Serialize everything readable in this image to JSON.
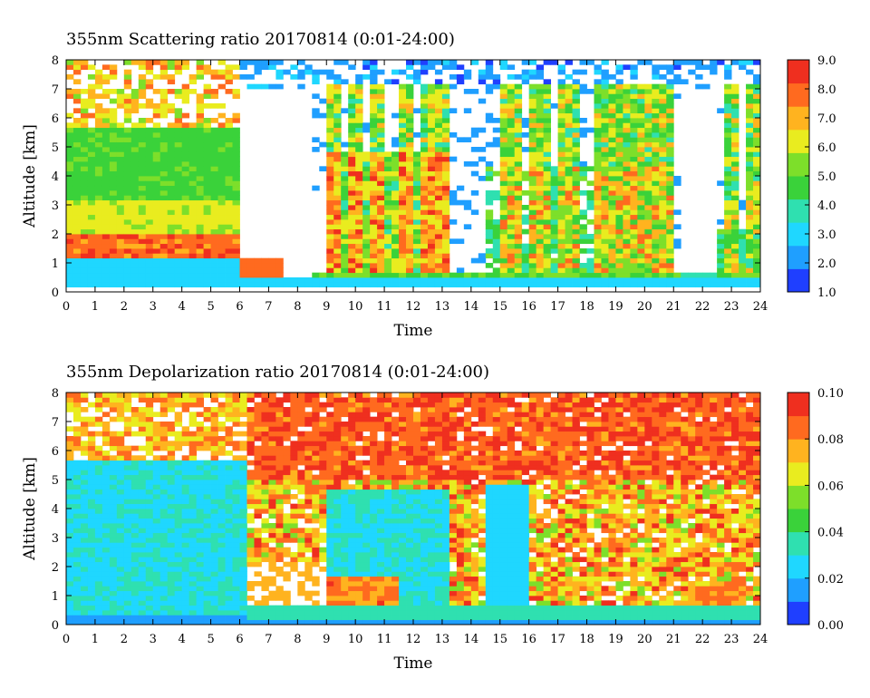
{
  "chart_data": [
    {
      "type": "heatmap",
      "title": "355nm Scattering ratio  20170814 (0:01-24:00)",
      "xlabel": "Time",
      "ylabel": "Altitude [km]",
      "xlim": [
        0,
        24
      ],
      "ylim": [
        0,
        8
      ],
      "x_ticks": [
        "0",
        "1",
        "2",
        "3",
        "4",
        "5",
        "6",
        "7",
        "8",
        "9",
        "10",
        "11",
        "12",
        "13",
        "14",
        "15",
        "16",
        "17",
        "18",
        "19",
        "20",
        "21",
        "22",
        "23",
        "24"
      ],
      "y_ticks": [
        "0",
        "1",
        "2",
        "3",
        "4",
        "5",
        "6",
        "7",
        "8"
      ],
      "colorbar": {
        "range": [
          1.0,
          9.0
        ],
        "ticks": [
          "1.0",
          "2.0",
          "3.0",
          "4.0",
          "5.0",
          "6.0",
          "7.0",
          "8.0",
          "9.0"
        ]
      },
      "colormap": [
        "#1f3fff",
        "#1f9fff",
        "#1fd7ff",
        "#2fe0b0",
        "#3ad23a",
        "#7ddf2a",
        "#e9ec1f",
        "#ffb31f",
        "#ff6a1f",
        "#ef2f1f"
      ],
      "missing_color": "#ffffff"
    },
    {
      "type": "heatmap",
      "title": "355nm Depolarization ratio  20170814 (0:01-24:00)",
      "xlabel": "Time",
      "ylabel": "Altitude [km]",
      "xlim": [
        0,
        24
      ],
      "ylim": [
        0,
        8
      ],
      "x_ticks": [
        "0",
        "1",
        "2",
        "3",
        "4",
        "5",
        "6",
        "7",
        "8",
        "9",
        "10",
        "11",
        "12",
        "13",
        "14",
        "15",
        "16",
        "17",
        "18",
        "19",
        "20",
        "21",
        "22",
        "23",
        "24"
      ],
      "y_ticks": [
        "0",
        "1",
        "2",
        "3",
        "4",
        "5",
        "6",
        "7",
        "8"
      ],
      "colorbar": {
        "range": [
          0.0,
          0.1
        ],
        "ticks": [
          "0.00",
          "0.02",
          "0.04",
          "0.06",
          "0.08",
          "0.10"
        ]
      },
      "colormap": [
        "#1f3fff",
        "#1f9fff",
        "#1fd7ff",
        "#2fe0b0",
        "#3ad23a",
        "#7ddf2a",
        "#e9ec1f",
        "#ffb31f",
        "#ff6a1f",
        "#ef2f1f"
      ],
      "missing_color": "#ffffff"
    }
  ]
}
